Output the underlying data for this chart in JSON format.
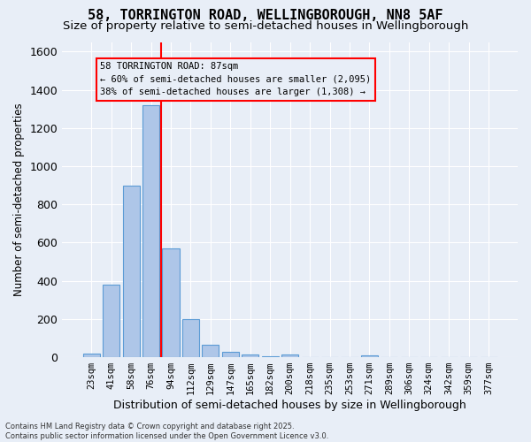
{
  "title": "58, TORRINGTON ROAD, WELLINGBOROUGH, NN8 5AF",
  "subtitle": "Size of property relative to semi-detached houses in Wellingborough",
  "xlabel": "Distribution of semi-detached houses by size in Wellingborough",
  "ylabel": "Number of semi-detached properties",
  "bar_labels": [
    "23sqm",
    "41sqm",
    "58sqm",
    "76sqm",
    "94sqm",
    "112sqm",
    "129sqm",
    "147sqm",
    "165sqm",
    "182sqm",
    "200sqm",
    "218sqm",
    "235sqm",
    "253sqm",
    "271sqm",
    "289sqm",
    "306sqm",
    "324sqm",
    "342sqm",
    "359sqm",
    "377sqm"
  ],
  "bar_values": [
    20,
    380,
    900,
    1320,
    570,
    200,
    65,
    30,
    15,
    5,
    15,
    0,
    0,
    0,
    10,
    0,
    0,
    0,
    0,
    0,
    0
  ],
  "bar_color": "#aec6e8",
  "bar_edgecolor": "#5b9bd5",
  "background_color": "#e8eef7",
  "grid_color": "#ffffff",
  "vline_color": "red",
  "annotation_title": "58 TORRINGTON ROAD: 87sqm",
  "annotation_line1": "← 60% of semi-detached houses are smaller (2,095)",
  "annotation_line2": "38% of semi-detached houses are larger (1,308) →",
  "footer": "Contains HM Land Registry data © Crown copyright and database right 2025.\nContains public sector information licensed under the Open Government Licence v3.0.",
  "ylim": [
    0,
    1650
  ],
  "title_fontsize": 11,
  "subtitle_fontsize": 9.5
}
